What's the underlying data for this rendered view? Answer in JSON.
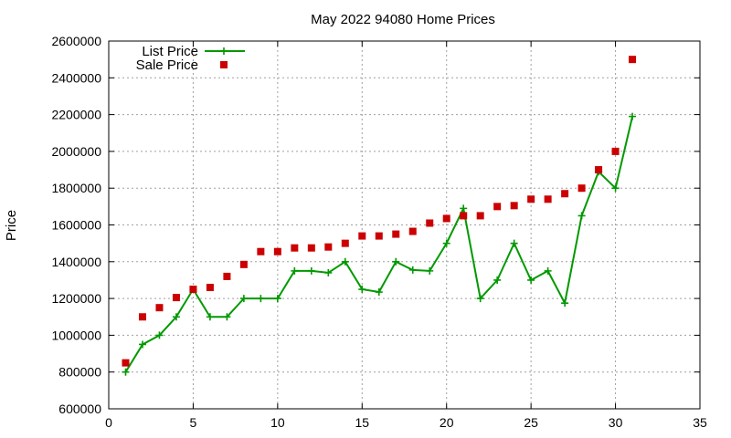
{
  "chart_data": {
    "type": "line",
    "title": "May 2022 94080 Home Prices",
    "xlabel": "",
    "ylabel": "Price",
    "xlim": [
      0,
      35
    ],
    "ylim": [
      600000,
      2600000
    ],
    "x_ticks": [
      "0",
      "5",
      "10",
      "15",
      "20",
      "25",
      "30",
      "35"
    ],
    "y_ticks": [
      "600000",
      "800000",
      "1000000",
      "1200000",
      "1400000",
      "1600000",
      "1800000",
      "2000000",
      "2200000",
      "2400000",
      "2600000"
    ],
    "grid": true,
    "legend_position": "top-left",
    "series": [
      {
        "name": "List Price",
        "style": "line-with-crosses",
        "color": "#009900",
        "x": [
          1,
          2,
          3,
          4,
          5,
          6,
          7,
          8,
          9,
          10,
          11,
          12,
          13,
          14,
          15,
          16,
          17,
          18,
          19,
          20,
          21,
          22,
          23,
          24,
          25,
          26,
          27,
          28,
          29,
          30,
          31
        ],
        "values": [
          800000,
          950000,
          1000000,
          1100000,
          1250000,
          1100000,
          1100000,
          1200000,
          1200000,
          1200000,
          1350000,
          1350000,
          1340000,
          1400000,
          1250000,
          1235000,
          1400000,
          1355000,
          1350000,
          1500000,
          1690000,
          1200000,
          1300000,
          1500000,
          1300000,
          1350000,
          1175000,
          1650000,
          1890000,
          1800000,
          2190000
        ]
      },
      {
        "name": "Sale Price",
        "style": "square-markers",
        "color": "#cc0000",
        "x": [
          1,
          2,
          3,
          4,
          5,
          6,
          7,
          8,
          9,
          10,
          11,
          12,
          13,
          14,
          15,
          16,
          17,
          18,
          19,
          20,
          21,
          22,
          23,
          24,
          25,
          26,
          27,
          28,
          29,
          30,
          31
        ],
        "values": [
          850000,
          1100000,
          1150000,
          1205000,
          1250000,
          1260000,
          1320000,
          1385000,
          1455000,
          1455000,
          1475000,
          1475000,
          1480000,
          1500000,
          1540000,
          1540000,
          1550000,
          1565000,
          1610000,
          1635000,
          1650000,
          1650000,
          1700000,
          1705000,
          1740000,
          1740000,
          1770000,
          1800000,
          1900000,
          2000000,
          2500000
        ]
      }
    ]
  }
}
